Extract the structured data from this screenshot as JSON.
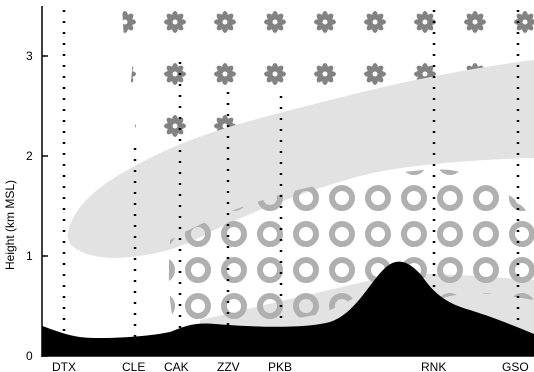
{
  "figure": {
    "y_axis": {
      "label": "Height (km MSL)",
      "ticks": [
        "0",
        "1",
        "2",
        "3"
      ],
      "range_km": [
        0,
        3.5
      ]
    },
    "stations": [
      {
        "code": "DTX"
      },
      {
        "code": "CLE"
      },
      {
        "code": "CAK"
      },
      {
        "code": "ZZV"
      },
      {
        "code": "PKB"
      },
      {
        "code": "RNK"
      },
      {
        "code": "GSO"
      }
    ],
    "legend_symbols": {
      "upper_region": "flower-pattern",
      "lower_region": "ring-pattern"
    },
    "colors": {
      "terrain": "#000000",
      "shaded_layer": "#e2e2e2",
      "flower_symbol": "#828282",
      "ring_symbol": "#b0b0b0"
    }
  }
}
